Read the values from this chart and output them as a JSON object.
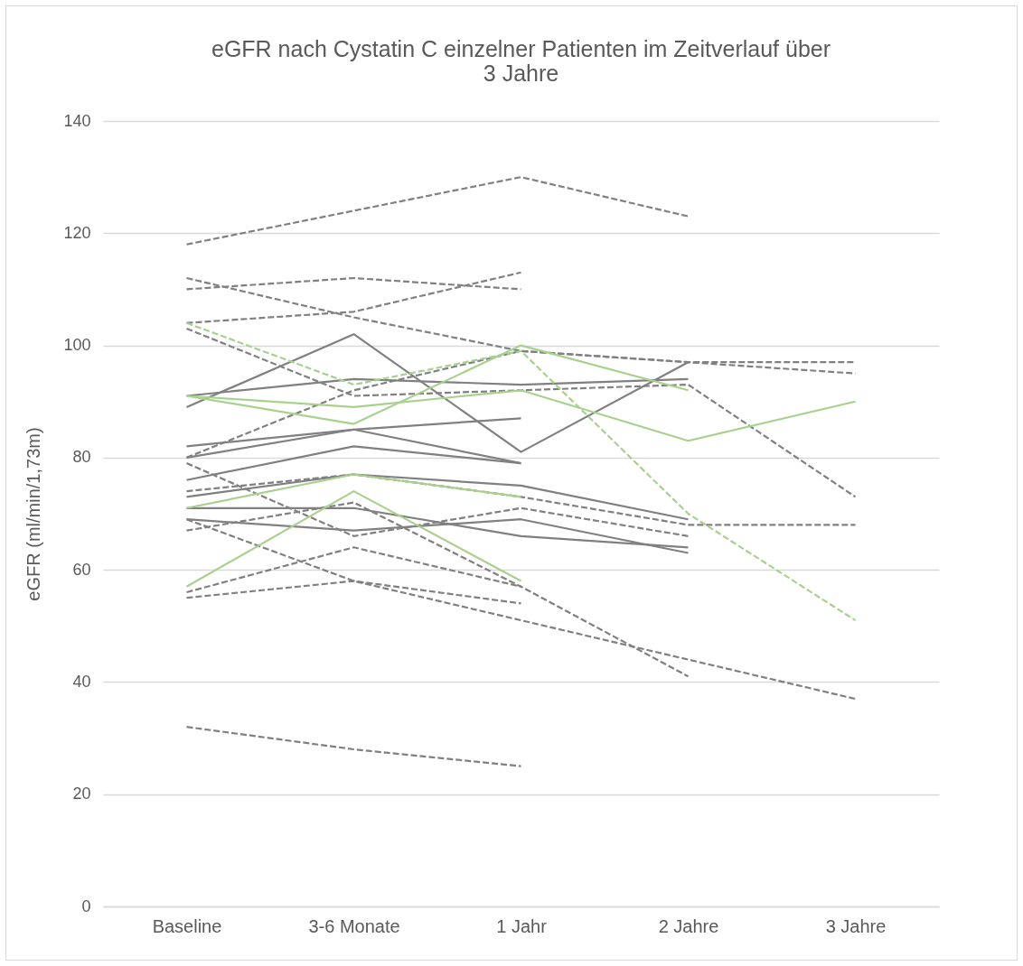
{
  "chart_data": {
    "type": "line",
    "title": "eGFR nach Cystatin C einzelner Patienten im Zeitverlauf über 3 Jahre",
    "ylabel": "eGFR (ml/min/1,73m)",
    "categories": [
      "Baseline",
      "3-6 Monate",
      "1 Jahr",
      "2 Jahre",
      "3 Jahre"
    ],
    "ylim": [
      0,
      140
    ],
    "yticks": [
      0,
      20,
      40,
      60,
      80,
      100,
      120,
      140
    ],
    "grid": "y",
    "legend": false,
    "marker": "none",
    "series": [
      {
        "color": "#808080",
        "line_style": "dashed",
        "values": [
          118,
          124,
          130,
          123,
          null
        ]
      },
      {
        "color": "#808080",
        "line_style": "dashed",
        "values": [
          110,
          112,
          110,
          null,
          null
        ]
      },
      {
        "color": "#808080",
        "line_style": "dashed",
        "values": [
          112,
          105,
          99,
          97,
          97
        ]
      },
      {
        "color": "#808080",
        "line_style": "dashed",
        "values": [
          104,
          106,
          113,
          null,
          null
        ]
      },
      {
        "color": "#808080",
        "line_style": "dashed",
        "values": [
          103,
          91,
          92,
          93,
          73
        ]
      },
      {
        "color": "#808080",
        "line_style": "dashed",
        "values": [
          80,
          92,
          99,
          97,
          95
        ]
      },
      {
        "color": "#808080",
        "line_style": "dashed",
        "values": [
          74,
          77,
          73,
          68,
          68
        ]
      },
      {
        "color": "#808080",
        "line_style": "dashed",
        "values": [
          79,
          66,
          71,
          66,
          null
        ]
      },
      {
        "color": "#808080",
        "line_style": "dashed",
        "values": [
          67,
          72,
          57,
          41,
          null
        ]
      },
      {
        "color": "#808080",
        "line_style": "dashed",
        "values": [
          69,
          58,
          51,
          44,
          37
        ]
      },
      {
        "color": "#808080",
        "line_style": "dashed",
        "values": [
          56,
          64,
          57,
          null,
          null
        ]
      },
      {
        "color": "#808080",
        "line_style": "dashed",
        "values": [
          55,
          58,
          54,
          null,
          null
        ]
      },
      {
        "color": "#808080",
        "line_style": "dashed",
        "values": [
          32,
          28,
          25,
          null,
          null
        ]
      },
      {
        "color": "#808080",
        "line_style": "solid",
        "values": [
          89,
          102,
          81,
          97,
          null
        ]
      },
      {
        "color": "#808080",
        "line_style": "solid",
        "values": [
          91,
          94,
          93,
          94,
          null
        ]
      },
      {
        "color": "#808080",
        "line_style": "solid",
        "values": [
          82,
          85,
          87,
          null,
          null
        ]
      },
      {
        "color": "#808080",
        "line_style": "solid",
        "values": [
          80,
          85,
          79,
          null,
          null
        ]
      },
      {
        "color": "#808080",
        "line_style": "solid",
        "values": [
          76,
          82,
          79,
          null,
          null
        ]
      },
      {
        "color": "#808080",
        "line_style": "solid",
        "values": [
          73,
          77,
          75,
          69,
          null
        ]
      },
      {
        "color": "#808080",
        "line_style": "solid",
        "values": [
          71,
          71,
          66,
          64,
          null
        ]
      },
      {
        "color": "#808080",
        "line_style": "solid",
        "values": [
          69,
          67,
          69,
          63,
          null
        ]
      },
      {
        "color": "#a9d18e",
        "line_style": "dashed",
        "values": [
          104,
          93,
          99,
          70,
          51
        ]
      },
      {
        "color": "#a9d18e",
        "line_style": "solid",
        "values": [
          91,
          89,
          92,
          83,
          90
        ]
      },
      {
        "color": "#a9d18e",
        "line_style": "solid",
        "values": [
          91,
          86,
          100,
          92,
          null
        ]
      },
      {
        "color": "#a9d18e",
        "line_style": "solid",
        "values": [
          71,
          77,
          73,
          null,
          null
        ]
      },
      {
        "color": "#a9d18e",
        "line_style": "solid",
        "values": [
          57,
          74,
          58,
          null,
          null
        ]
      }
    ]
  }
}
